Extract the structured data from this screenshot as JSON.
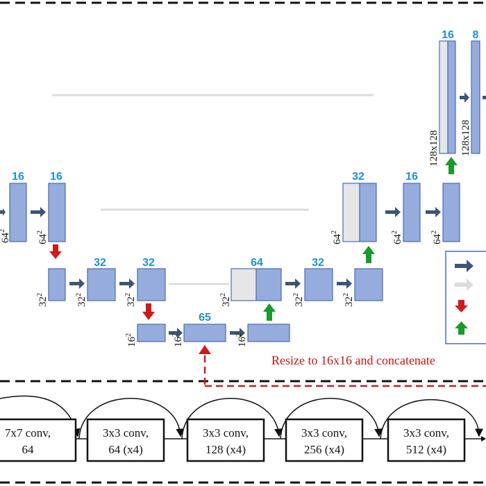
{
  "colors": {
    "block_fill": "#96acdd",
    "block_stroke": "#4e6bb5",
    "concat_block_fill": "#e6e6e6",
    "channel_text": "#1e90d6",
    "conv_arrow": "#3c5577",
    "skip_arrow": "#dcdcdc",
    "down_arrow": "#d01a1a",
    "up_arrow": "#1a9a2a",
    "resize_line": "#d01a1a"
  },
  "channels": {
    "c16a": "16",
    "c16b": "16",
    "c32a": "32",
    "c32b": "32",
    "c65": "65",
    "c64": "64",
    "c32c": "32",
    "c32d": "32",
    "c16c": "16",
    "c16d": "16",
    "c8": "8"
  },
  "dims": {
    "d64a": "64",
    "d64b": "64",
    "d32a": "32",
    "d32b": "32",
    "d32c": "32",
    "d16a": "16",
    "d16b": "16",
    "d16c": "16",
    "d32d": "32",
    "d32e": "32",
    "d32f": "32",
    "d64c": "64",
    "d64d": "64",
    "d64e": "64",
    "d128a": "128x128",
    "d128b": "128x128",
    "exp": "2"
  },
  "resize_label": "Resize to 16x16 and concatenate",
  "encoder": {
    "blocks": [
      {
        "line1": "7x7 conv,",
        "line2": "64"
      },
      {
        "line1": "3x3 conv,",
        "line2": "64 (x4)"
      },
      {
        "line1": "3x3 conv,",
        "line2": "128 (x4)"
      },
      {
        "line1": "3x3 conv,",
        "line2": "256 (x4)"
      },
      {
        "line1": "3x3 conv,",
        "line2": "512 (x4)"
      }
    ]
  },
  "legend": {
    "icons": [
      "conv-arrow-icon",
      "skip-arrow-icon",
      "down-arrow-icon",
      "up-arrow-icon"
    ]
  }
}
